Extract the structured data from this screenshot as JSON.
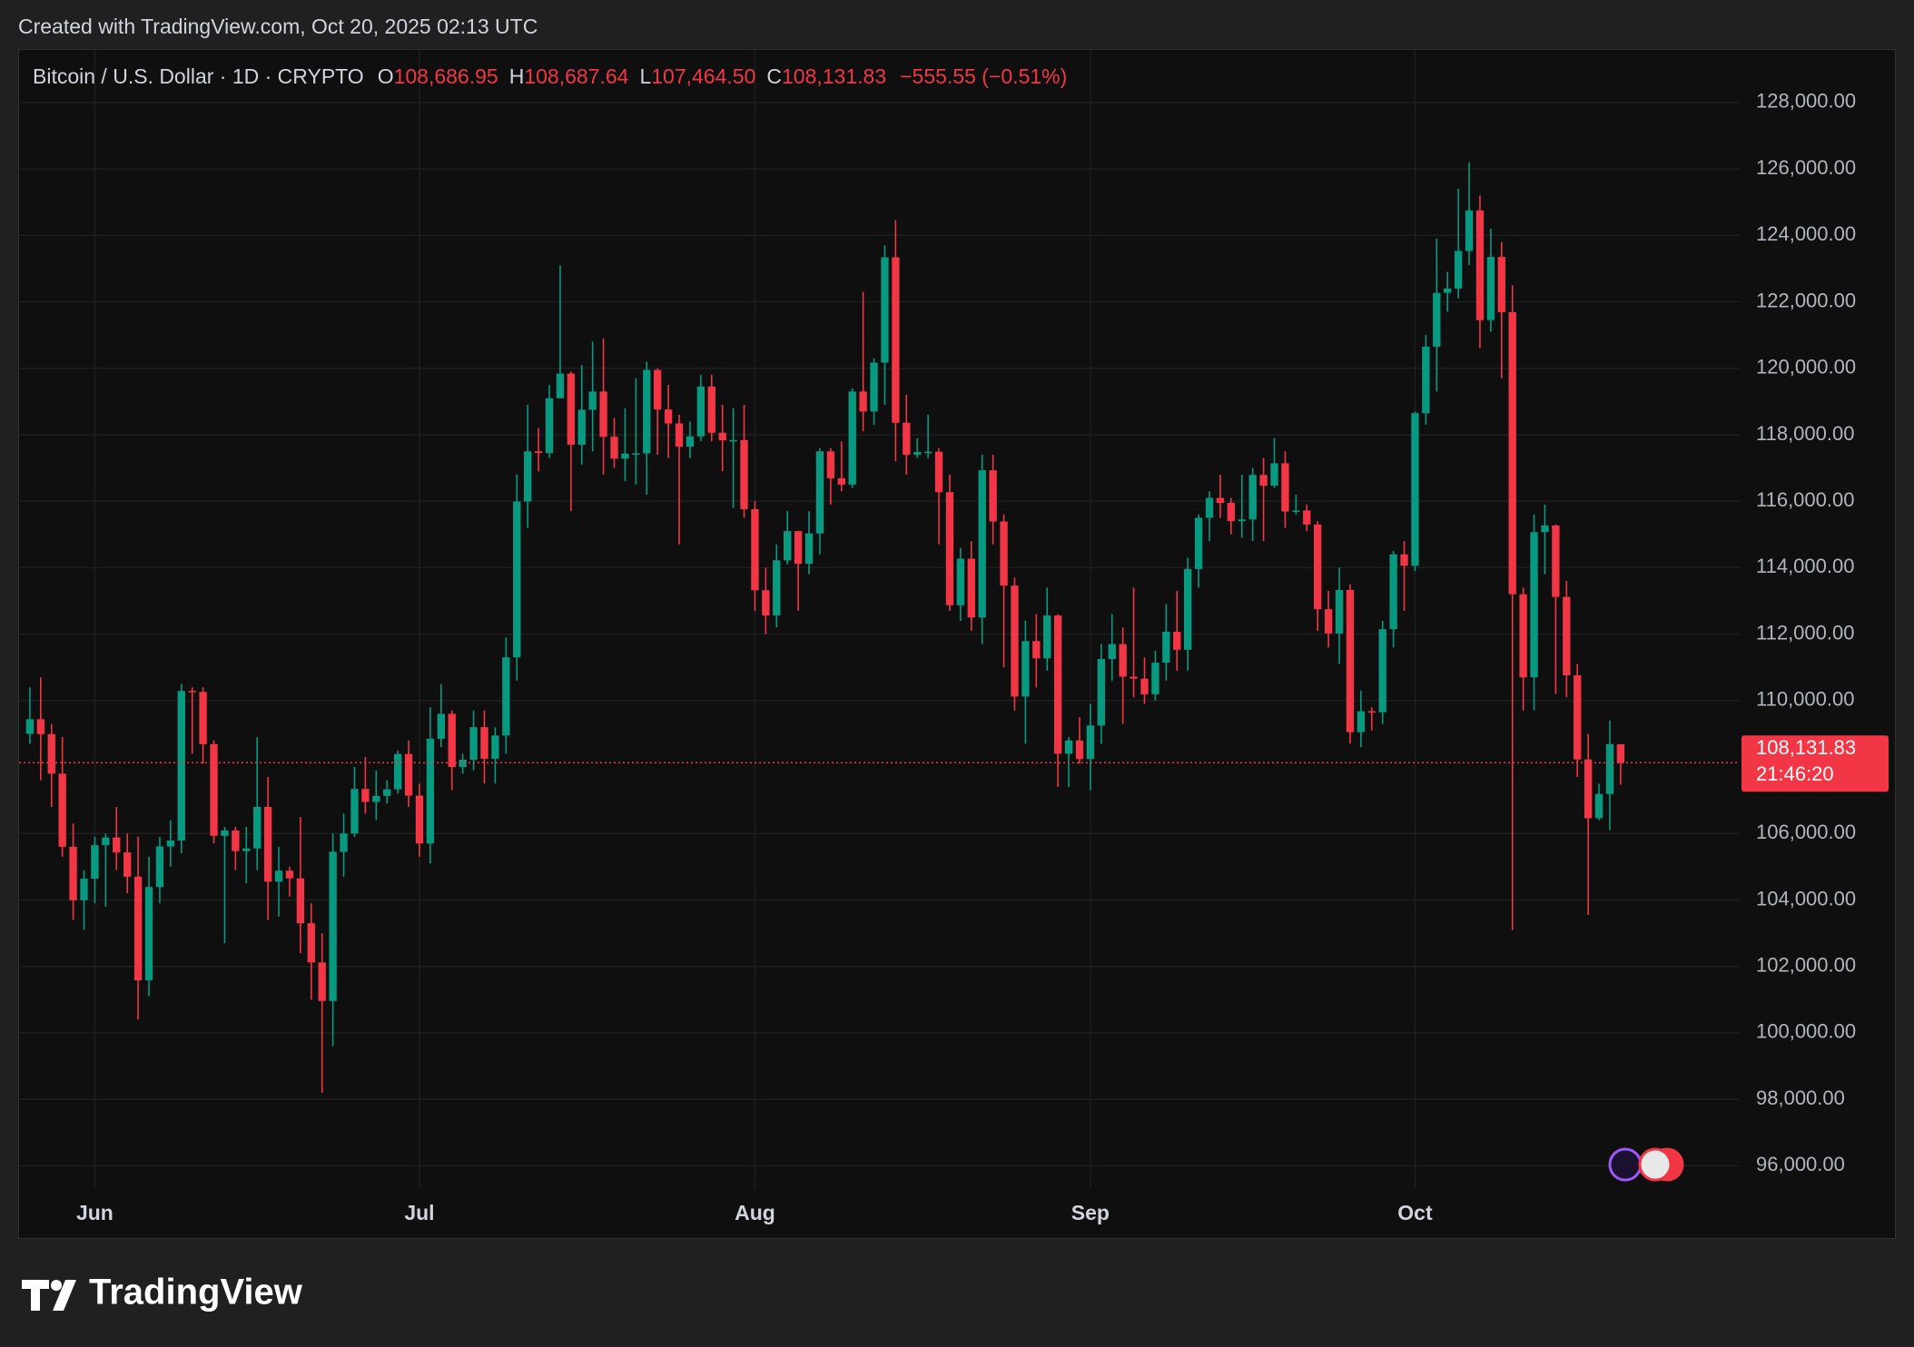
{
  "chart_data": {
    "type": "candlestick",
    "credit": "Created with TradingView.com, Oct 20, 2025 02:13 UTC",
    "brand": "TradingView",
    "legend": {
      "symbol": "Bitcoin / U.S. Dollar · 1D · CRYPTO",
      "fields": [
        {
          "key": "O",
          "label": "108,686.95"
        },
        {
          "key": "H",
          "label": "108,687.64"
        },
        {
          "key": "L",
          "label": "107,464.50"
        },
        {
          "key": "C",
          "label": "108,131.83"
        }
      ],
      "change": "−555.55 (−0.51%)"
    },
    "price_tag": {
      "label": "108,131.83",
      "countdown": "21:46:20"
    },
    "up_color": "#089981",
    "down_color": "#f23645",
    "grid": true,
    "x": [
      "2025-05-26",
      "2025-05-27",
      "2025-05-28",
      "2025-05-29",
      "2025-05-30",
      "2025-05-31",
      "2025-06-01",
      "2025-06-02",
      "2025-06-03",
      "2025-06-04",
      "2025-06-05",
      "2025-06-06",
      "2025-06-07",
      "2025-06-08",
      "2025-06-09",
      "2025-06-10",
      "2025-06-11",
      "2025-06-12",
      "2025-06-13",
      "2025-06-14",
      "2025-06-15",
      "2025-06-16",
      "2025-06-17",
      "2025-06-18",
      "2025-06-19",
      "2025-06-20",
      "2025-06-21",
      "2025-06-22",
      "2025-06-23",
      "2025-06-24",
      "2025-06-25",
      "2025-06-26",
      "2025-06-27",
      "2025-06-28",
      "2025-06-29",
      "2025-06-30",
      "2025-07-01",
      "2025-07-02",
      "2025-07-03",
      "2025-07-04",
      "2025-07-05",
      "2025-07-06",
      "2025-07-07",
      "2025-07-08",
      "2025-07-09",
      "2025-07-10",
      "2025-07-11",
      "2025-07-12",
      "2025-07-13",
      "2025-07-14",
      "2025-07-15",
      "2025-07-16",
      "2025-07-17",
      "2025-07-18",
      "2025-07-19",
      "2025-07-20",
      "2025-07-21",
      "2025-07-22",
      "2025-07-23",
      "2025-07-24",
      "2025-07-25",
      "2025-07-26",
      "2025-07-27",
      "2025-07-28",
      "2025-07-29",
      "2025-07-30",
      "2025-07-31",
      "2025-08-01",
      "2025-08-02",
      "2025-08-03",
      "2025-08-04",
      "2025-08-05",
      "2025-08-06",
      "2025-08-07",
      "2025-08-08",
      "2025-08-09",
      "2025-08-10",
      "2025-08-11",
      "2025-08-12",
      "2025-08-13",
      "2025-08-14",
      "2025-08-15",
      "2025-08-16",
      "2025-08-17",
      "2025-08-18",
      "2025-08-19",
      "2025-08-20",
      "2025-08-21",
      "2025-08-22",
      "2025-08-23",
      "2025-08-24",
      "2025-08-25",
      "2025-08-26",
      "2025-08-27",
      "2025-08-28",
      "2025-08-29",
      "2025-08-30",
      "2025-08-31",
      "2025-09-01",
      "2025-09-02",
      "2025-09-03",
      "2025-09-04",
      "2025-09-05",
      "2025-09-06",
      "2025-09-07",
      "2025-09-08",
      "2025-09-09",
      "2025-09-10",
      "2025-09-11",
      "2025-09-12",
      "2025-09-13",
      "2025-09-14",
      "2025-09-15",
      "2025-09-16",
      "2025-09-17",
      "2025-09-18",
      "2025-09-19",
      "2025-09-20",
      "2025-09-21",
      "2025-09-22",
      "2025-09-23",
      "2025-09-24",
      "2025-09-25",
      "2025-09-26",
      "2025-09-27",
      "2025-09-28",
      "2025-09-29",
      "2025-09-30",
      "2025-10-01",
      "2025-10-02",
      "2025-10-03",
      "2025-10-04",
      "2025-10-05",
      "2025-10-06",
      "2025-10-07",
      "2025-10-08",
      "2025-10-09",
      "2025-10-10",
      "2025-10-11",
      "2025-10-12",
      "2025-10-13",
      "2025-10-14",
      "2025-10-15",
      "2025-10-16",
      "2025-10-17",
      "2025-10-18",
      "2025-10-19",
      "2025-10-20"
    ],
    "open": [
      109000,
      109440,
      108990,
      107800,
      105600,
      103990,
      104640,
      105650,
      105880,
      105430,
      104700,
      101580,
      104390,
      105610,
      105790,
      110290,
      110260,
      108690,
      105930,
      106090,
      105470,
      105550,
      106800,
      104550,
      104880,
      104650,
      103300,
      102120,
      100960,
      105450,
      106000,
      107340,
      106950,
      107130,
      107330,
      108390,
      107140,
      105700,
      108850,
      109600,
      108000,
      108220,
      109200,
      108250,
      108950,
      111300,
      115990,
      117500,
      117450,
      119100,
      119840,
      117700,
      118750,
      119300,
      117940,
      117280,
      117430,
      117440,
      119950,
      118760,
      118340,
      117640,
      117950,
      119450,
      118060,
      117830,
      117840,
      115760,
      113320,
      112560,
      114220,
      115100,
      114120,
      115030,
      117500,
      116690,
      116500,
      119300,
      118700,
      120170,
      123340,
      118360,
      117400,
      117480,
      117490,
      116270,
      112870,
      114270,
      112500,
      116930,
      115390,
      113460,
      110120,
      111790,
      111270,
      112560,
      108400,
      108800,
      108240,
      109250,
      111250,
      111700,
      110720,
      110660,
      110190,
      111140,
      112070,
      111530,
      113960,
      115500,
      116100,
      115950,
      115400,
      115450,
      116790,
      116470,
      117140,
      115690,
      115720,
      115300,
      112750,
      112020,
      113330,
      109050,
      109680,
      109650,
      112150,
      114400,
      114060,
      118650,
      120650,
      122270,
      122400,
      123530,
      124750,
      121450,
      123350,
      121690,
      113200,
      110700,
      115070,
      115270,
      113120,
      110760,
      108230,
      106460,
      107190,
      108686.95
    ],
    "high": [
      110400,
      110700,
      109300,
      108900,
      106300,
      104900,
      105900,
      106000,
      106800,
      106000,
      105900,
      105300,
      105900,
      106400,
      110500,
      110400,
      110400,
      108800,
      106200,
      106200,
      106200,
      108900,
      107700,
      105600,
      105000,
      106500,
      103900,
      103000,
      106000,
      106600,
      108000,
      108300,
      107900,
      107600,
      108500,
      108800,
      107500,
      109800,
      110500,
      109700,
      108400,
      109700,
      109700,
      109200,
      111900,
      116800,
      118900,
      118200,
      119500,
      123100,
      119900,
      120100,
      120800,
      120900,
      118500,
      118800,
      119700,
      120200,
      120000,
      119500,
      118600,
      118400,
      119800,
      119800,
      118900,
      118800,
      118900,
      116000,
      114000,
      114700,
      115700,
      115100,
      115700,
      117600,
      117600,
      117800,
      119400,
      122300,
      120300,
      123700,
      124450,
      119200,
      117900,
      118600,
      117600,
      116800,
      114600,
      114800,
      117400,
      117400,
      115600,
      113700,
      112400,
      112600,
      113400,
      112600,
      108900,
      109500,
      109900,
      111700,
      112600,
      112200,
      113400,
      111300,
      111500,
      112900,
      113300,
      114300,
      115600,
      116300,
      116800,
      116100,
      116800,
      117000,
      117300,
      117900,
      117500,
      116200,
      115900,
      115400,
      113300,
      114000,
      113500,
      110300,
      109800,
      112400,
      114500,
      114800,
      118700,
      121000,
      123900,
      122900,
      125400,
      126200,
      125200,
      124200,
      123800,
      122500,
      113400,
      115600,
      115900,
      115300,
      113600,
      111100,
      109000,
      107500,
      109400,
      108687.64
    ],
    "low": [
      108700,
      107600,
      106800,
      105300,
      103400,
      103100,
      103900,
      103800,
      104900,
      104200,
      100400,
      101100,
      103900,
      105000,
      105400,
      108400,
      108100,
      105700,
      102700,
      104900,
      104500,
      104900,
      103400,
      103500,
      104100,
      102400,
      101000,
      98200,
      99600,
      104700,
      105900,
      106600,
      106400,
      106900,
      107200,
      106800,
      105300,
      105100,
      108600,
      107300,
      107800,
      107900,
      107500,
      107500,
      108400,
      110600,
      115200,
      116900,
      117300,
      119100,
      115700,
      117100,
      117500,
      116800,
      117000,
      116600,
      116500,
      116200,
      117400,
      117300,
      114700,
      117300,
      117800,
      117800,
      116900,
      115800,
      115500,
      112700,
      112000,
      112200,
      114100,
      112700,
      113800,
      114400,
      115900,
      116300,
      116400,
      118100,
      118300,
      118900,
      117200,
      116800,
      117300,
      117300,
      114700,
      112700,
      112400,
      112100,
      111700,
      114700,
      111000,
      109700,
      108700,
      110400,
      110900,
      107400,
      107400,
      108100,
      107300,
      108700,
      110600,
      109300,
      110100,
      109900,
      110000,
      110600,
      110900,
      110900,
      113400,
      114800,
      115500,
      115000,
      114900,
      114800,
      114800,
      116400,
      115200,
      115600,
      115100,
      112100,
      111600,
      111100,
      108700,
      108600,
      109100,
      109300,
      111600,
      112700,
      113900,
      118300,
      119300,
      121700,
      122100,
      123100,
      120600,
      121100,
      119700,
      103100,
      109700,
      109700,
      113800,
      110200,
      110100,
      107700,
      103550,
      106400,
      106100,
      107464.5
    ],
    "close": [
      109440,
      108990,
      107800,
      105600,
      103990,
      104640,
      105650,
      105880,
      105430,
      104700,
      101580,
      104390,
      105610,
      105790,
      110290,
      110260,
      108690,
      105930,
      106090,
      105470,
      105550,
      106800,
      104550,
      104880,
      104650,
      103300,
      102120,
      100960,
      105450,
      106000,
      107340,
      106950,
      107130,
      107330,
      108390,
      107140,
      105700,
      108850,
      109600,
      108000,
      108220,
      109200,
      108250,
      108950,
      111300,
      115990,
      117500,
      117450,
      119100,
      119840,
      117700,
      118750,
      119300,
      117940,
      117280,
      117430,
      117440,
      119950,
      118760,
      118340,
      117640,
      117950,
      119450,
      118060,
      117830,
      117840,
      115760,
      113320,
      112560,
      114220,
      115100,
      114120,
      115030,
      117500,
      116690,
      116500,
      119300,
      118700,
      120170,
      123340,
      118360,
      117400,
      117480,
      117490,
      116270,
      112870,
      114270,
      112500,
      116930,
      115390,
      113460,
      110120,
      111790,
      111270,
      112560,
      108400,
      108800,
      108240,
      109250,
      111250,
      111700,
      110720,
      110660,
      110190,
      111140,
      112070,
      111530,
      113960,
      115500,
      116100,
      115950,
      115400,
      115450,
      116790,
      116470,
      117140,
      115690,
      115720,
      115300,
      112750,
      112020,
      113330,
      109050,
      109680,
      109650,
      112150,
      114400,
      114060,
      118650,
      120650,
      122270,
      122400,
      123530,
      124750,
      121450,
      123350,
      121690,
      113200,
      110700,
      115070,
      115270,
      113120,
      110760,
      108230,
      106460,
      107190,
      108690,
      108131.83
    ],
    "xlim": [
      "2025-05-25",
      "2025-10-31"
    ],
    "xticks": [
      {
        "value": "2025-06-01",
        "label": "Jun"
      },
      {
        "value": "2025-07-01",
        "label": "Jul"
      },
      {
        "value": "2025-08-01",
        "label": "Aug"
      },
      {
        "value": "2025-09-01",
        "label": "Sep"
      },
      {
        "value": "2025-10-01",
        "label": "Oct"
      }
    ],
    "ylim": [
      95300,
      129580
    ],
    "yticks": [
      {
        "value": 96000,
        "label": "96,000.00"
      },
      {
        "value": 98000,
        "label": "98,000.00"
      },
      {
        "value": 100000,
        "label": "100,000.00"
      },
      {
        "value": 102000,
        "label": "102,000.00"
      },
      {
        "value": 104000,
        "label": "104,000.00"
      },
      {
        "value": 106000,
        "label": "106,000.00"
      },
      {
        "value": 110000,
        "label": "110,000.00"
      },
      {
        "value": 112000,
        "label": "112,000.00"
      },
      {
        "value": 114000,
        "label": "114,000.00"
      },
      {
        "value": 116000,
        "label": "116,000.00"
      },
      {
        "value": 118000,
        "label": "118,000.00"
      },
      {
        "value": 120000,
        "label": "120,000.00"
      },
      {
        "value": 122000,
        "label": "122,000.00"
      },
      {
        "value": 124000,
        "label": "124,000.00"
      },
      {
        "value": 126000,
        "label": "126,000.00"
      },
      {
        "value": 128000,
        "label": "128,000.00"
      }
    ]
  }
}
